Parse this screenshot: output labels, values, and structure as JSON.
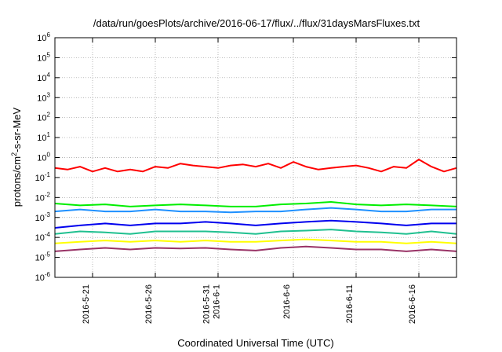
{
  "chart_data": {
    "type": "line",
    "title": "/data/run/goesPlots/archive/2016-06-17/flux/../flux/31daysMarsFluxes.txt",
    "xlabel": "Coordinated Universal Time (UTC)",
    "ylabel": {
      "base": "protons/cm",
      "sup": "2",
      "rest": "-s-sr-MeV"
    },
    "yscale": "log",
    "ylim": [
      1e-06,
      1000000.0
    ],
    "xlim": [
      "2016-05-18",
      "2016-06-19"
    ],
    "grid": true,
    "y_ticks": [
      {
        "base": "10",
        "exp": "-6",
        "value": 1e-06
      },
      {
        "base": "10",
        "exp": "-5",
        "value": 1e-05
      },
      {
        "base": "10",
        "exp": "-4",
        "value": 0.0001
      },
      {
        "base": "10",
        "exp": "-3",
        "value": 0.001
      },
      {
        "base": "10",
        "exp": "-2",
        "value": 0.01
      },
      {
        "base": "10",
        "exp": "-1",
        "value": 0.1
      },
      {
        "base": "10",
        "exp": "0",
        "value": 1
      },
      {
        "base": "10",
        "exp": "1",
        "value": 10
      },
      {
        "base": "10",
        "exp": "2",
        "value": 100
      },
      {
        "base": "10",
        "exp": "3",
        "value": 1000
      },
      {
        "base": "10",
        "exp": "4",
        "value": 10000
      },
      {
        "base": "10",
        "exp": "5",
        "value": 100000
      },
      {
        "base": "10",
        "exp": "6",
        "value": 1000000
      }
    ],
    "x_ticks": [
      {
        "date": "2016-05-21",
        "lines": [
          "2016-5-21"
        ]
      },
      {
        "date": "2016-05-26",
        "lines": [
          "2016-5-26"
        ]
      },
      {
        "date": "2016-05-31",
        "lines": [
          "2016-5-31",
          "2016-6-1"
        ]
      },
      {
        "date": "2016-06-06",
        "lines": [
          "2016-6-6"
        ]
      },
      {
        "date": "2016-06-11",
        "lines": [
          "2016-6-11"
        ]
      },
      {
        "date": "2016-06-16",
        "lines": [
          "2016-6-16"
        ]
      }
    ],
    "series": [
      {
        "color": "#ff0000",
        "x": [
          "2016-05-18",
          "2016-05-19",
          "2016-05-20",
          "2016-05-21",
          "2016-05-22",
          "2016-05-23",
          "2016-05-24",
          "2016-05-25",
          "2016-05-26",
          "2016-05-27",
          "2016-05-28",
          "2016-05-29",
          "2016-05-30",
          "2016-05-31",
          "2016-06-01",
          "2016-06-02",
          "2016-06-03",
          "2016-06-04",
          "2016-06-05",
          "2016-06-06",
          "2016-06-07",
          "2016-06-08",
          "2016-06-09",
          "2016-06-10",
          "2016-06-11",
          "2016-06-12",
          "2016-06-13",
          "2016-06-14",
          "2016-06-15",
          "2016-06-16",
          "2016-06-17",
          "2016-06-18",
          "2016-06-19"
        ],
        "y": [
          0.3,
          0.25,
          0.35,
          0.2,
          0.3,
          0.2,
          0.25,
          0.2,
          0.35,
          0.3,
          0.5,
          0.4,
          0.35,
          0.3,
          0.4,
          0.45,
          0.35,
          0.5,
          0.3,
          0.6,
          0.35,
          0.25,
          0.3,
          0.35,
          0.4,
          0.3,
          0.2,
          0.35,
          0.3,
          0.8,
          0.35,
          0.2,
          0.3
        ]
      },
      {
        "color": "#00ee00",
        "x": [
          "2016-05-18",
          "2016-05-20",
          "2016-05-22",
          "2016-05-24",
          "2016-05-26",
          "2016-05-28",
          "2016-05-30",
          "2016-06-01",
          "2016-06-03",
          "2016-06-05",
          "2016-06-07",
          "2016-06-09",
          "2016-06-11",
          "2016-06-13",
          "2016-06-15",
          "2016-06-17",
          "2016-06-19"
        ],
        "y": [
          0.005,
          0.004,
          0.0045,
          0.0035,
          0.004,
          0.0045,
          0.004,
          0.0035,
          0.0035,
          0.0045,
          0.005,
          0.006,
          0.0045,
          0.004,
          0.0045,
          0.004,
          0.0035
        ]
      },
      {
        "color": "#1e90ff",
        "x": [
          "2016-05-18",
          "2016-05-20",
          "2016-05-22",
          "2016-05-24",
          "2016-05-26",
          "2016-05-28",
          "2016-05-30",
          "2016-06-01",
          "2016-06-03",
          "2016-06-05",
          "2016-06-07",
          "2016-06-09",
          "2016-06-11",
          "2016-06-13",
          "2016-06-15",
          "2016-06-17",
          "2016-06-19"
        ],
        "y": [
          0.002,
          0.0025,
          0.002,
          0.002,
          0.0025,
          0.002,
          0.002,
          0.0018,
          0.002,
          0.002,
          0.0025,
          0.003,
          0.0025,
          0.002,
          0.002,
          0.0025,
          0.0025
        ]
      },
      {
        "color": "#0000ee",
        "x": [
          "2016-05-18",
          "2016-05-20",
          "2016-05-22",
          "2016-05-24",
          "2016-05-26",
          "2016-05-28",
          "2016-05-30",
          "2016-06-01",
          "2016-06-03",
          "2016-06-05",
          "2016-06-07",
          "2016-06-09",
          "2016-06-11",
          "2016-06-13",
          "2016-06-15",
          "2016-06-17",
          "2016-06-19"
        ],
        "y": [
          0.0003,
          0.0004,
          0.0005,
          0.0004,
          0.0005,
          0.0005,
          0.0006,
          0.0005,
          0.0004,
          0.0005,
          0.0006,
          0.0007,
          0.0006,
          0.0005,
          0.0004,
          0.0005,
          0.0005
        ]
      },
      {
        "color": "#20c090",
        "x": [
          "2016-05-18",
          "2016-05-20",
          "2016-05-22",
          "2016-05-24",
          "2016-05-26",
          "2016-05-28",
          "2016-05-30",
          "2016-06-01",
          "2016-06-03",
          "2016-06-05",
          "2016-06-07",
          "2016-06-09",
          "2016-06-11",
          "2016-06-13",
          "2016-06-15",
          "2016-06-17",
          "2016-06-19"
        ],
        "y": [
          0.00015,
          0.0002,
          0.00018,
          0.00015,
          0.0002,
          0.0002,
          0.0002,
          0.00018,
          0.00015,
          0.0002,
          0.00022,
          0.00025,
          0.0002,
          0.00018,
          0.00015,
          0.0002,
          0.00015
        ]
      },
      {
        "color": "#ffff00",
        "x": [
          "2016-05-18",
          "2016-05-20",
          "2016-05-22",
          "2016-05-24",
          "2016-05-26",
          "2016-05-28",
          "2016-05-30",
          "2016-06-01",
          "2016-06-03",
          "2016-06-05",
          "2016-06-07",
          "2016-06-09",
          "2016-06-11",
          "2016-06-13",
          "2016-06-15",
          "2016-06-17",
          "2016-06-19"
        ],
        "y": [
          5e-05,
          6e-05,
          7e-05,
          6e-05,
          7e-05,
          6e-05,
          7e-05,
          6e-05,
          6e-05,
          7e-05,
          8e-05,
          7e-05,
          6e-05,
          6e-05,
          5e-05,
          6e-05,
          5e-05
        ]
      },
      {
        "color": "#993366",
        "x": [
          "2016-05-18",
          "2016-05-20",
          "2016-05-22",
          "2016-05-24",
          "2016-05-26",
          "2016-05-28",
          "2016-05-30",
          "2016-06-01",
          "2016-06-03",
          "2016-06-05",
          "2016-06-07",
          "2016-06-09",
          "2016-06-11",
          "2016-06-13",
          "2016-06-15",
          "2016-06-17",
          "2016-06-19"
        ],
        "y": [
          2e-05,
          2.5e-05,
          3e-05,
          2.5e-05,
          3e-05,
          2.8e-05,
          3e-05,
          2.5e-05,
          2.2e-05,
          3e-05,
          3.5e-05,
          3e-05,
          2.5e-05,
          2.5e-05,
          2e-05,
          2.5e-05,
          2e-05
        ]
      }
    ]
  }
}
